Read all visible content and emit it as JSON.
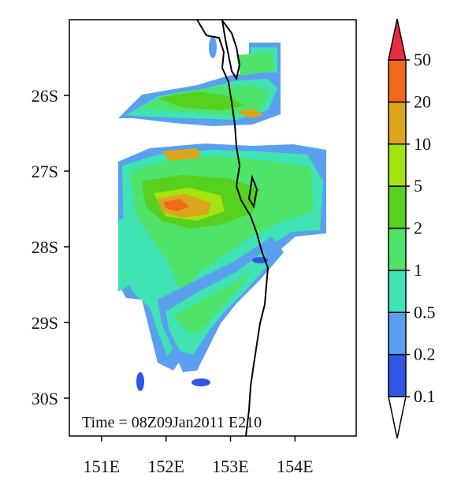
{
  "map": {
    "time_label": "Time = 08Z09Jan2011 E210",
    "lat_ticks": [
      {
        "label": "26S",
        "lat": -26
      },
      {
        "label": "27S",
        "lat": -27
      },
      {
        "label": "28S",
        "lat": -28
      },
      {
        "label": "29S",
        "lat": -29
      },
      {
        "label": "30S",
        "lat": -30
      }
    ],
    "lon_ticks": [
      {
        "label": "151E",
        "lon": 151
      },
      {
        "label": "152E",
        "lon": 152
      },
      {
        "label": "153E",
        "lon": 153
      },
      {
        "label": "154E",
        "lon": 154
      }
    ],
    "lon_range": [
      150.5,
      154.95
    ],
    "lat_range": [
      -30.5,
      -25.0
    ]
  },
  "colorbar": {
    "levels": [
      "0.1",
      "0.2",
      "0.5",
      "1",
      "2",
      "5",
      "10",
      "20",
      "50"
    ],
    "colors": [
      "#3155e6",
      "#5aa0ef",
      "#3fe3b4",
      "#4fe36a",
      "#56d11f",
      "#a5e20e",
      "#dda51c",
      "#ef6a1c",
      "#ea2a3f"
    ]
  }
}
